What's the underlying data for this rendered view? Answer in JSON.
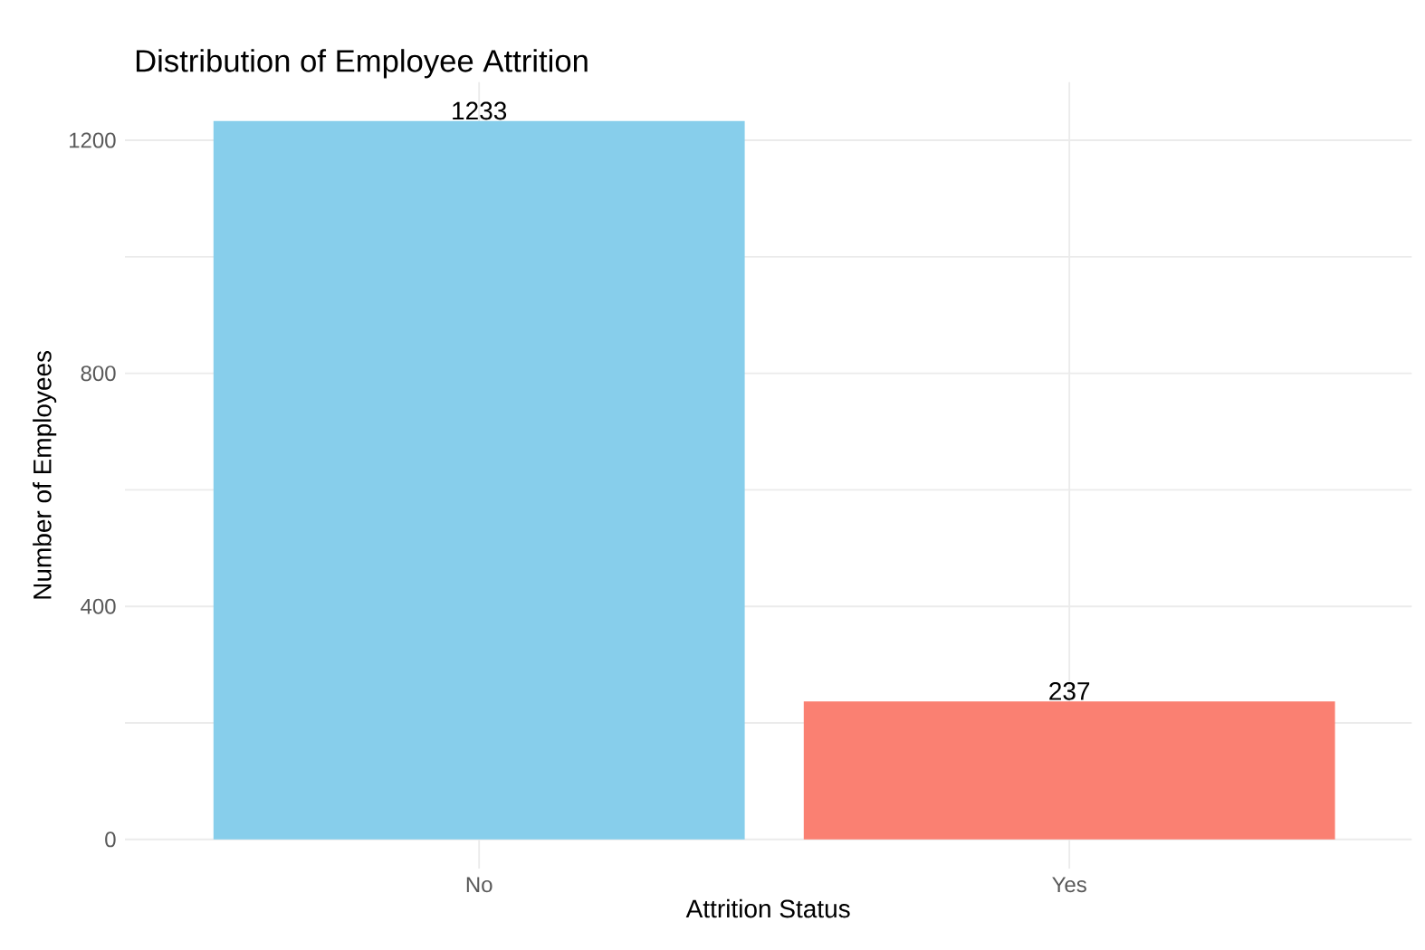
{
  "chart_data": {
    "type": "bar",
    "title": "Distribution of Employee Attrition",
    "xlabel": "Attrition Status",
    "ylabel": "Number of Employees",
    "categories": [
      "No",
      "Yes"
    ],
    "values": [
      1233,
      237
    ],
    "colors": [
      "#87ceeb",
      "#fa8072"
    ],
    "ylim": [
      -50,
      1300
    ],
    "yticks": [
      0,
      {
        "value": 200,
        "label": null
      },
      400,
      {
        "value": 600,
        "label": null
      },
      800,
      {
        "value": 1000,
        "label": null
      },
      1200
    ],
    "grid": true,
    "data_labels": true
  }
}
